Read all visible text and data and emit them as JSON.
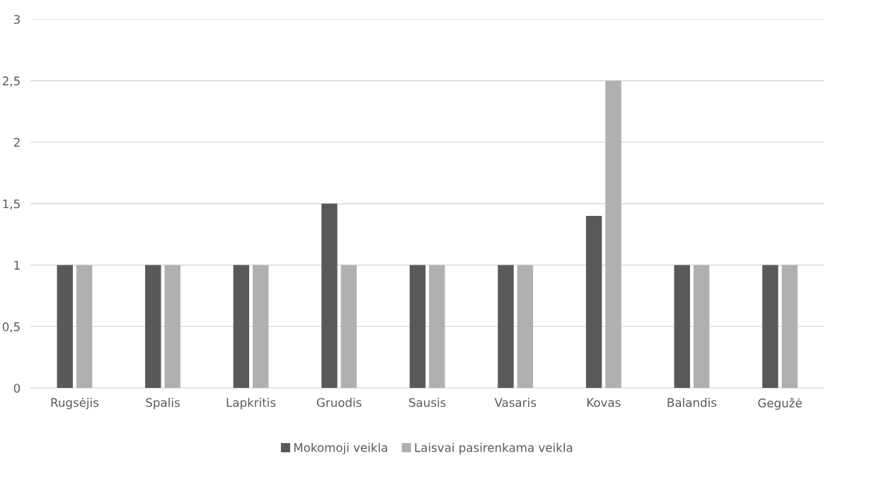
{
  "chart_data": {
    "type": "bar",
    "categories": [
      "Rugsėjis",
      "Spalis",
      "Lapkritis",
      "Gruodis",
      "Sausis",
      "Vasaris",
      "Kovas",
      "Balandis",
      "Gegužė"
    ],
    "series": [
      {
        "name": "Mokomoji veikla",
        "color": "#595959",
        "values": [
          1,
          1,
          1,
          1.5,
          1,
          1,
          1.4,
          1,
          1
        ]
      },
      {
        "name": "Laisvai pasirenkama veikla",
        "color": "#b0b0b0",
        "values": [
          1,
          1,
          1,
          1,
          1,
          1,
          2.5,
          1,
          1
        ]
      }
    ],
    "ylim": [
      0,
      3
    ],
    "yticks": [
      0,
      {
        "value": 0.5,
        "label": "0,5"
      },
      1,
      {
        "value": 1.5,
        "label": "1,5"
      },
      2,
      {
        "value": 2.5,
        "label": "2,5"
      },
      3
    ],
    "grid": "y",
    "legend": "bottom"
  }
}
